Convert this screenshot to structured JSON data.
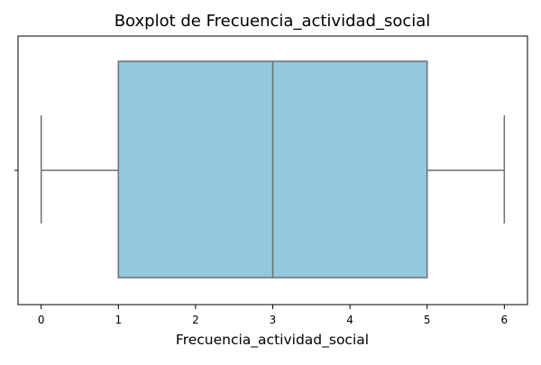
{
  "chart_data": {
    "type": "boxplot",
    "title": "Boxplot de Frecuencia_actividad_social",
    "xlabel": "Frecuencia_actividad_social",
    "ylabel": "",
    "orientation": "horizontal",
    "xlim": [
      -0.3,
      6.3
    ],
    "xticks": [
      0,
      1,
      2,
      3,
      4,
      5,
      6
    ],
    "xtick_labels": [
      "0",
      "1",
      "2",
      "3",
      "4",
      "5",
      "6"
    ],
    "grid": false,
    "legend": "none",
    "series": [
      {
        "whisker_low": 0,
        "q1": 1,
        "median": 3,
        "q3": 5,
        "whisker_high": 6
      }
    ]
  },
  "colors": {
    "box_fill": "#93c8df",
    "line": "#6e6e6e",
    "axis": "#000000",
    "background": "#ffffff"
  }
}
